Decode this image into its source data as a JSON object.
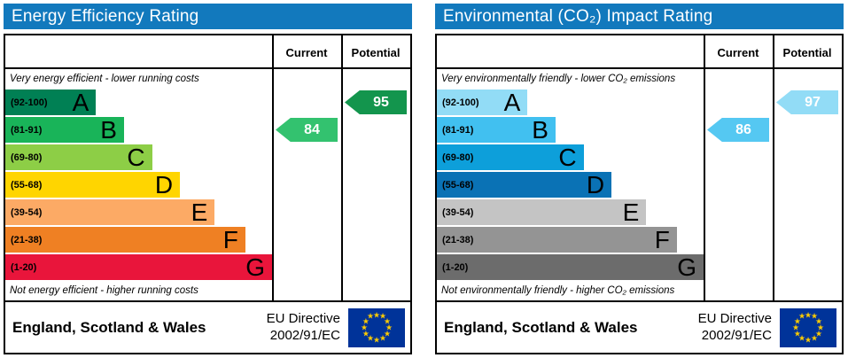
{
  "chart_data": [
    {
      "type": "bar",
      "title": "Energy Efficiency Rating",
      "categories": [
        "A (92-100)",
        "B (81-91)",
        "C (69-80)",
        "D (55-68)",
        "E (39-54)",
        "F (21-38)",
        "G (1-20)"
      ],
      "values": [
        34,
        44.5,
        55,
        65.5,
        78.5,
        90,
        100
      ],
      "current_rating": 84,
      "current_band": "B",
      "potential_rating": 95,
      "potential_band": "A",
      "annotations": [
        "Very energy efficient - lower running costs",
        "Not energy efficient - higher running costs",
        "England, Scotland & Wales",
        "EU Directive 2002/91/EC"
      ]
    },
    {
      "type": "bar",
      "title": "Environmental (CO₂) Impact Rating",
      "categories": [
        "A (92-100)",
        "B (81-91)",
        "C (69-80)",
        "D (55-68)",
        "E (39-54)",
        "F (21-38)",
        "G (1-20)"
      ],
      "values": [
        34,
        44.5,
        55,
        65.5,
        78.5,
        90,
        100
      ],
      "current_rating": 86,
      "current_band": "B",
      "potential_rating": 97,
      "potential_band": "A",
      "annotations": [
        "Very environmentally friendly - lower CO₂ emissions",
        "Not environmentally friendly - higher CO₂ emissions",
        "England, Scotland & Wales",
        "EU Directive 2002/91/EC"
      ]
    }
  ],
  "panels": [
    {
      "title": "Energy Efficiency Rating",
      "header_color": "#1279bd",
      "columns": {
        "current": "Current",
        "potential": "Potential"
      },
      "top_caption": "Very energy efficient - lower running costs",
      "bottom_caption": "Not energy efficient - higher running costs",
      "bands": [
        {
          "range": "(92-100)",
          "letter": "A",
          "color": "#008054",
          "width_pct": 34
        },
        {
          "range": "(81-91)",
          "letter": "B",
          "color": "#19b459",
          "width_pct": 44.5
        },
        {
          "range": "(69-80)",
          "letter": "C",
          "color": "#8dce46",
          "width_pct": 55
        },
        {
          "range": "(55-68)",
          "letter": "D",
          "color": "#ffd500",
          "width_pct": 65.5
        },
        {
          "range": "(39-54)",
          "letter": "E",
          "color": "#fcaa65",
          "width_pct": 78.5
        },
        {
          "range": "(21-38)",
          "letter": "F",
          "color": "#ef8023",
          "width_pct": 90
        },
        {
          "range": "(1-20)",
          "letter": "G",
          "color": "#e9153b",
          "width_pct": 100
        }
      ],
      "current": {
        "value": 84,
        "band_index": 1,
        "color": "#33c26f"
      },
      "potential": {
        "value": 95,
        "band_index": 0,
        "color": "#13954d"
      },
      "footer": {
        "region": "England, Scotland & Wales",
        "directive_line1": "EU Directive",
        "directive_line2": "2002/91/EC",
        "flag_bg": "#003399",
        "flag_star": "#ffcc00"
      }
    },
    {
      "title": "Environmental (CO₂) Impact Rating",
      "header_color": "#1279bd",
      "columns": {
        "current": "Current",
        "potential": "Potential"
      },
      "top_caption": "Very environmentally friendly - lower CO₂ emissions",
      "bottom_caption": "Not environmentally friendly - higher CO₂ emissions",
      "bands": [
        {
          "range": "(92-100)",
          "letter": "A",
          "color": "#92dcf6",
          "width_pct": 34
        },
        {
          "range": "(81-91)",
          "letter": "B",
          "color": "#41c0f0",
          "width_pct": 44.5
        },
        {
          "range": "(69-80)",
          "letter": "C",
          "color": "#0d9fda",
          "width_pct": 55
        },
        {
          "range": "(55-68)",
          "letter": "D",
          "color": "#0a72b5",
          "width_pct": 65.5
        },
        {
          "range": "(39-54)",
          "letter": "E",
          "color": "#c4c4c4",
          "width_pct": 78.5
        },
        {
          "range": "(21-38)",
          "letter": "F",
          "color": "#949494",
          "width_pct": 90
        },
        {
          "range": "(1-20)",
          "letter": "G",
          "color": "#6c6c6c",
          "width_pct": 100
        }
      ],
      "current": {
        "value": 86,
        "band_index": 1,
        "color": "#55c8f2"
      },
      "potential": {
        "value": 97,
        "band_index": 0,
        "color": "#92dcf6"
      },
      "footer": {
        "region": "England, Scotland & Wales",
        "directive_line1": "EU Directive",
        "directive_line2": "2002/91/EC",
        "flag_bg": "#003399",
        "flag_star": "#ffcc00"
      }
    }
  ]
}
